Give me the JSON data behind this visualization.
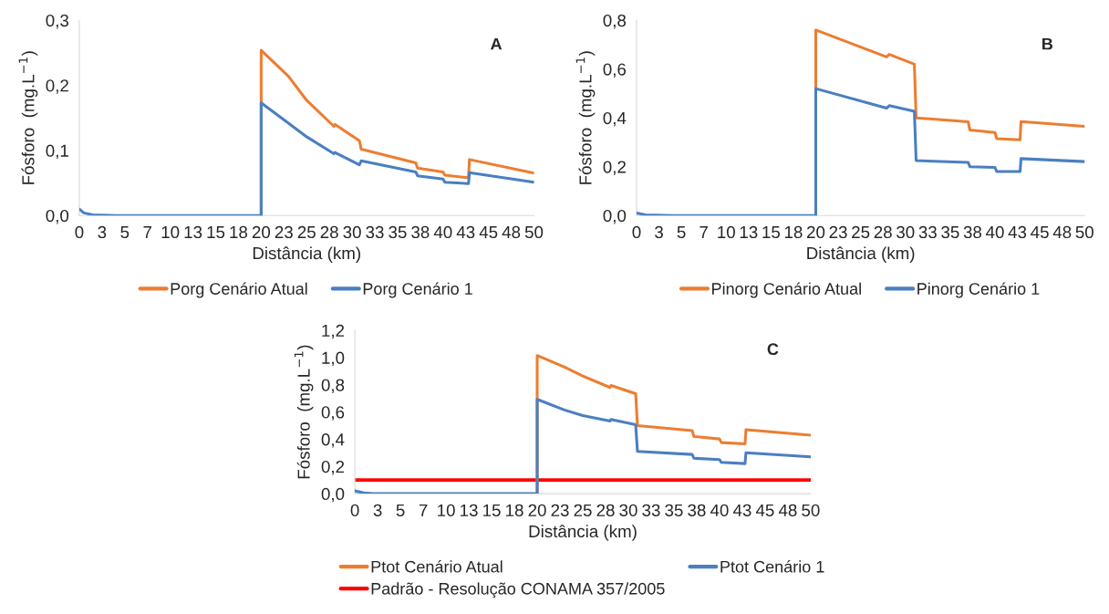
{
  "chart_data": [
    {
      "type": "line",
      "xlabel": "Distância (km)",
      "ylabel": "Fósforo  (mg.L$^{−1}$)",
      "annotations": [
        "A"
      ],
      "legend": "bottom",
      "grid": false,
      "xlim": [
        0,
        50
      ],
      "xticks": [
        0,
        {
          "value": 2.5,
          "label": "3"
        },
        5,
        {
          "value": 7.5,
          "label": "7"
        },
        10,
        {
          "value": 12.5,
          "label": "13"
        },
        15,
        {
          "value": 17.5,
          "label": "18"
        },
        20,
        {
          "value": 22.5,
          "label": "23"
        },
        25,
        {
          "value": 27.5,
          "label": "28"
        },
        30,
        {
          "value": 32.5,
          "label": "33"
        },
        35,
        {
          "value": 37.5,
          "label": "38"
        },
        40,
        {
          "value": 42.5,
          "label": "43"
        },
        45,
        {
          "value": 47.5,
          "label": "48"
        },
        50
      ],
      "ylim": [
        0,
        0.3
      ],
      "yticks": [
        {
          "value": 0,
          "label": "0,0"
        },
        {
          "value": 0.1,
          "label": "0,1"
        },
        {
          "value": 0.2,
          "label": "0,2"
        },
        {
          "value": 0.3,
          "label": "0,3"
        }
      ],
      "series": [
        {
          "name": "Porg Cenário Atual",
          "color": "#ed7d31",
          "x": [
            20,
            20,
            23,
            25,
            28,
            28.1,
            30.8,
            31,
            37,
            37.2,
            40,
            40.2,
            42.8,
            42.9,
            50
          ],
          "values": [
            0,
            0.254,
            0.214,
            0.177,
            0.137,
            0.14,
            0.115,
            0.102,
            0.081,
            0.073,
            0.067,
            0.062,
            0.058,
            0.086,
            0.065
          ]
        },
        {
          "name": "Porg Cenário 1",
          "color": "#4a7fc1",
          "x": [
            0,
            0.5,
            1.5,
            4,
            20,
            20,
            23,
            25,
            28,
            28.1,
            30.8,
            31,
            37,
            37.2,
            40,
            40.2,
            42.8,
            42.9,
            50
          ],
          "values": [
            0.01,
            0.004,
            0.001,
            0,
            0,
            0.173,
            0.142,
            0.121,
            0.095,
            0.097,
            0.078,
            0.084,
            0.067,
            0.061,
            0.056,
            0.051,
            0.049,
            0.066,
            0.051
          ]
        }
      ]
    },
    {
      "type": "line",
      "xlabel": "Distância (km)",
      "ylabel": "Fósforo  (mg.L$^{−1}$)",
      "annotations": [
        "B"
      ],
      "legend": "bottom",
      "grid": false,
      "xlim": [
        0,
        50
      ],
      "xticks": [
        0,
        {
          "value": 2.5,
          "label": "3"
        },
        5,
        {
          "value": 7.5,
          "label": "7"
        },
        10,
        {
          "value": 12.5,
          "label": "13"
        },
        15,
        {
          "value": 17.5,
          "label": "18"
        },
        20,
        {
          "value": 22.5,
          "label": "23"
        },
        25,
        {
          "value": 27.5,
          "label": "28"
        },
        30,
        {
          "value": 32.5,
          "label": "33"
        },
        35,
        {
          "value": 37.5,
          "label": "38"
        },
        40,
        {
          "value": 42.5,
          "label": "43"
        },
        45,
        {
          "value": 47.5,
          "label": "48"
        },
        50
      ],
      "ylim": [
        0,
        0.8
      ],
      "yticks": [
        {
          "value": 0,
          "label": "0,0"
        },
        {
          "value": 0.2,
          "label": "0,2"
        },
        {
          "value": 0.4,
          "label": "0,4"
        },
        {
          "value": 0.6,
          "label": "0,6"
        },
        {
          "value": 0.8,
          "label": "0,8"
        }
      ],
      "series": [
        {
          "name": "Pinorg Cenário Atual",
          "color": "#ed7d31",
          "x": [
            20,
            20,
            27.9,
            28.2,
            31,
            31.2,
            37,
            37.2,
            40,
            40.2,
            42.8,
            42.9,
            50
          ],
          "values": [
            0,
            0.76,
            0.65,
            0.66,
            0.62,
            0.4,
            0.384,
            0.35,
            0.34,
            0.315,
            0.31,
            0.385,
            0.365
          ]
        },
        {
          "name": "Pinorg Cenário 1",
          "color": "#4a7fc1",
          "x": [
            0,
            1,
            4,
            20,
            20,
            27.9,
            28.2,
            31,
            31.2,
            37,
            37.2,
            40,
            40.2,
            42.8,
            42.9,
            50
          ],
          "values": [
            0.01,
            0.003,
            0,
            0,
            0.52,
            0.44,
            0.45,
            0.427,
            0.225,
            0.218,
            0.2,
            0.197,
            0.18,
            0.18,
            0.233,
            0.221
          ]
        }
      ]
    },
    {
      "type": "line",
      "xlabel": "Distância (km)",
      "ylabel": "Fósforo  (mg.L$^{−1}$)",
      "annotations": [
        "C"
      ],
      "legend": "bottom",
      "grid": false,
      "xlim": [
        0,
        50
      ],
      "xticks": [
        0,
        {
          "value": 2.5,
          "label": "3"
        },
        5,
        {
          "value": 7.5,
          "label": "7"
        },
        10,
        {
          "value": 12.5,
          "label": "13"
        },
        15,
        {
          "value": 17.5,
          "label": "18"
        },
        20,
        {
          "value": 22.5,
          "label": "23"
        },
        25,
        {
          "value": 27.5,
          "label": "28"
        },
        30,
        {
          "value": 32.5,
          "label": "33"
        },
        35,
        {
          "value": 37.5,
          "label": "38"
        },
        40,
        {
          "value": 42.5,
          "label": "43"
        },
        45,
        {
          "value": 47.5,
          "label": "48"
        },
        50
      ],
      "ylim": [
        0,
        1.2
      ],
      "yticks": [
        {
          "value": 0,
          "label": "0,0"
        },
        {
          "value": 0.2,
          "label": "0,2"
        },
        {
          "value": 0.4,
          "label": "0,4"
        },
        {
          "value": 0.6,
          "label": "0,6"
        },
        {
          "value": 0.8,
          "label": "0,8"
        },
        {
          "value": 1.0,
          "label": "1,0"
        },
        {
          "value": 1.2,
          "label": "1,2"
        }
      ],
      "ref_lines": [
        {
          "axis": "y",
          "value": 0.1,
          "label": "Padrão - Resolução CONAMA 357/2005",
          "color": "#ff0000"
        }
      ],
      "series": [
        {
          "name": "Ptot Cenário Atual",
          "color": "#ed7d31",
          "x": [
            20,
            20,
            23,
            25,
            28,
            28.1,
            30.8,
            31,
            37,
            37.2,
            40,
            40.2,
            42.8,
            42.9,
            50
          ],
          "values": [
            0,
            1.015,
            0.93,
            0.865,
            0.78,
            0.795,
            0.735,
            0.5,
            0.463,
            0.42,
            0.402,
            0.375,
            0.366,
            0.47,
            0.43
          ]
        },
        {
          "name": "Ptot Cenário 1",
          "color": "#4a7fc1",
          "x": [
            0,
            1,
            2,
            20,
            20,
            23,
            25,
            28,
            28.1,
            30.8,
            31,
            37,
            37.2,
            40,
            40.2,
            42.8,
            42.9,
            50
          ],
          "values": [
            0.02,
            0.005,
            0,
            0,
            0.693,
            0.615,
            0.574,
            0.534,
            0.545,
            0.507,
            0.31,
            0.288,
            0.26,
            0.25,
            0.23,
            0.221,
            0.3,
            0.27
          ]
        }
      ]
    }
  ]
}
